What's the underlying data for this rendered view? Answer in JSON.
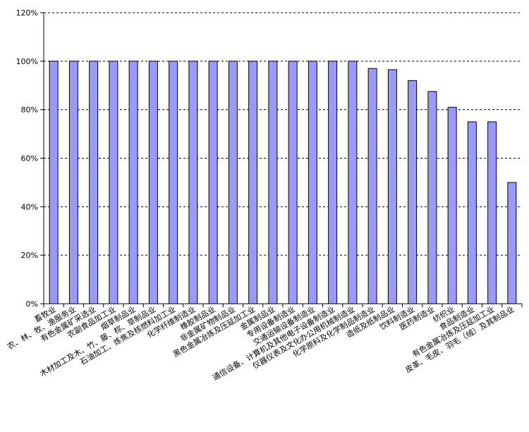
{
  "chart_data": {
    "type": "bar",
    "title": "",
    "xlabel": "",
    "ylabel": "",
    "ylim": [
      0,
      120
    ],
    "yticks": [
      "0%",
      "20%",
      "40%",
      "60%",
      "80%",
      "100%",
      "120%"
    ],
    "grid": "horizontal-dashed",
    "colors": {
      "bar_fill": "#9999ff",
      "bar_stroke": "#000000"
    },
    "categories": [
      "畜牧业",
      "农、林、牧、渔服务业",
      "有色金属矿采选业",
      "农副食品加工业",
      "烟草制品业",
      "木材加工及木、竹、藤、棕、草制品业",
      "石油加工、炼焦及核燃料加工业",
      "化学纤维制造业",
      "橡胶制品业",
      "非金属矿物制品业",
      "黑色金属冶炼及压延加工业",
      "金属制品业",
      "专用设备制造业",
      "交通运输设备制造业",
      "通信设备、计算机及其他电子设备制造业",
      "仪器仪表及文化办公用机械制造业",
      "化学原料及化学制品制造业",
      "造纸及纸制品业",
      "饮料制造业",
      "医药制造业",
      "纺织业",
      "食品制造业",
      "有色金属冶炼及压延加工业",
      "皮革、毛皮、羽毛（绒）及其制品业"
    ],
    "values": [
      100,
      100,
      100,
      100,
      100,
      100,
      100,
      100,
      100,
      100,
      100,
      100,
      100,
      100,
      100,
      100,
      97,
      96.5,
      92,
      87.5,
      81,
      75,
      75,
      50
    ]
  }
}
